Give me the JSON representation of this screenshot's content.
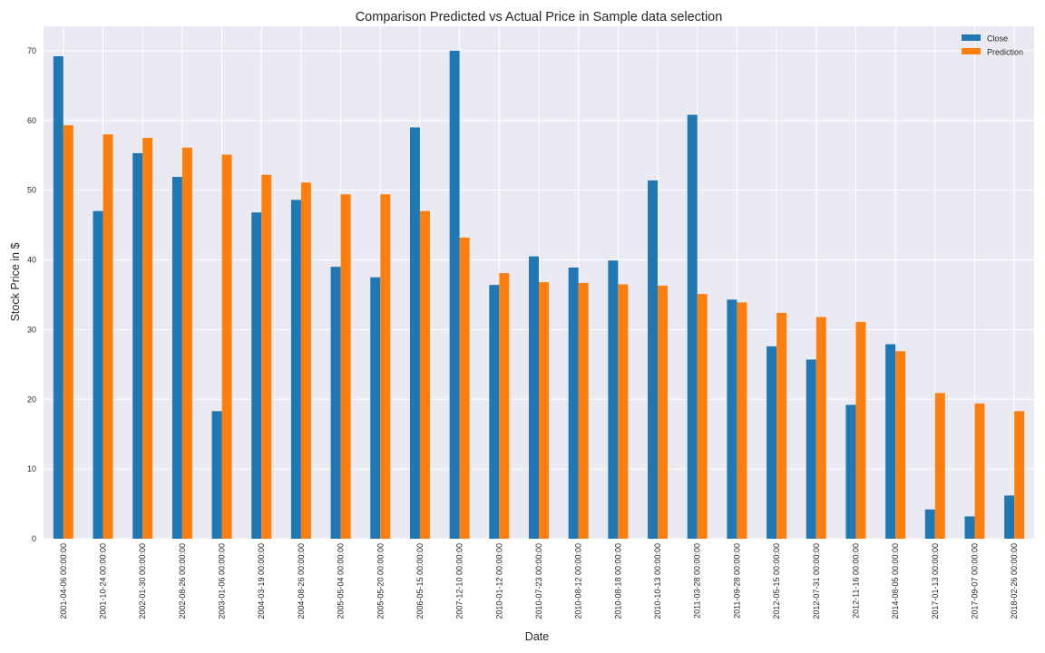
{
  "chart_data": {
    "type": "bar",
    "title": "Comparison Predicted vs Actual Price in Sample data selection",
    "xlabel": "Date",
    "ylabel": "Stock Price in $",
    "ylim": [
      0,
      73.5
    ],
    "yticks": [
      0,
      10,
      20,
      30,
      40,
      50,
      60,
      70
    ],
    "grid": true,
    "legend_position": "top-right",
    "categories": [
      "2001-04-06 00:00:00",
      "2001-10-24 00:00:00",
      "2002-01-30 00:00:00",
      "2002-08-26 00:00:00",
      "2003-01-06 00:00:00",
      "2004-03-19 00:00:00",
      "2004-08-26 00:00:00",
      "2005-05-04 00:00:00",
      "2005-05-20 00:00:00",
      "2006-05-15 00:00:00",
      "2007-12-10 00:00:00",
      "2010-01-12 00:00:00",
      "2010-07-23 00:00:00",
      "2010-08-12 00:00:00",
      "2010-08-18 00:00:00",
      "2010-10-13 00:00:00",
      "2011-03-28 00:00:00",
      "2011-09-28 00:00:00",
      "2012-05-15 00:00:00",
      "2012-07-31 00:00:00",
      "2012-11-16 00:00:00",
      "2014-08-05 00:00:00",
      "2017-01-13 00:00:00",
      "2017-09-07 00:00:00",
      "2018-02-26 00:00:00"
    ],
    "series": [
      {
        "name": "Close",
        "color": "#1f77b4",
        "values": [
          69.2,
          47.0,
          55.3,
          51.9,
          18.3,
          46.8,
          48.6,
          39.0,
          37.5,
          59.0,
          70.0,
          36.4,
          40.5,
          38.9,
          39.9,
          51.4,
          60.8,
          34.3,
          27.6,
          25.7,
          19.2,
          27.9,
          4.2,
          3.2,
          6.2
        ]
      },
      {
        "name": "Prediction",
        "color": "#ff7f0e",
        "values": [
          59.3,
          58.0,
          57.5,
          56.1,
          55.1,
          52.2,
          51.1,
          49.4,
          49.4,
          47.0,
          43.2,
          38.1,
          36.8,
          36.7,
          36.5,
          36.3,
          35.1,
          33.9,
          32.4,
          31.8,
          31.1,
          26.9,
          20.9,
          19.4,
          18.3
        ]
      }
    ]
  }
}
